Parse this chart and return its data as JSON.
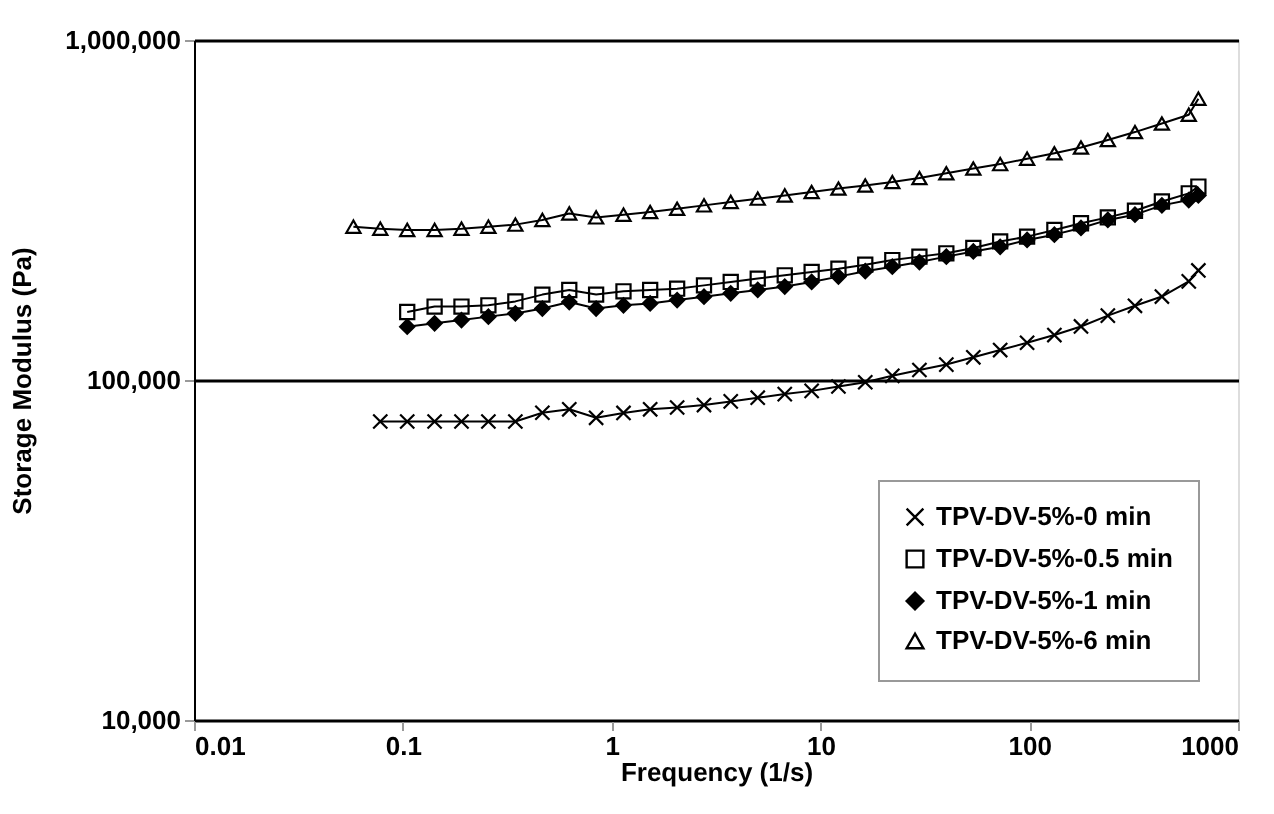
{
  "chart_data": {
    "type": "line",
    "xlabel": "Frequency (1/s)",
    "ylabel": "Storage Modulus (Pa)",
    "log": "xy",
    "xlim": [
      0.01,
      1000
    ],
    "xticks": [
      0.01,
      0.1,
      1,
      10,
      100,
      1000
    ],
    "ylim": [
      10000,
      1000000
    ],
    "yticks": [
      {
        "value": 10000,
        "label": "10,000"
      },
      {
        "value": 100000,
        "label": "100,000"
      },
      {
        "value": 1000000,
        "label": "1,000,000"
      }
    ],
    "grid": "y",
    "legend": "bottom right",
    "line_style": "solid",
    "series": [
      {
        "name": "TPV-DV-5%-0 min",
        "color": "#000000",
        "marker": "cross",
        "x": [
          0.078,
          0.105,
          0.142,
          0.191,
          0.257,
          0.346,
          0.466,
          0.627,
          0.843,
          1.14,
          1.53,
          2.06,
          2.77,
          3.72,
          5.01,
          6.75,
          9.08,
          12.2,
          16.4,
          22.1,
          29.8,
          40.1,
          54.0,
          72.6,
          97.7,
          132,
          177,
          238,
          321,
          432,
          581,
          646
        ],
        "values": [
          75500,
          75500,
          75500,
          75500,
          75500,
          75500,
          80100,
          82000,
          77400,
          80000,
          82000,
          83000,
          84400,
          86500,
          88700,
          90900,
          92900,
          95700,
          98500,
          102900,
          107000,
          111000,
          116600,
          122500,
          128700,
          135600,
          143700,
          154600,
          165300,
          176000,
          195000,
          210000
        ]
      },
      {
        "name": "TPV-DV-5%-0.5 min",
        "color": "#000000",
        "marker": "square",
        "x": [
          0.105,
          0.142,
          0.191,
          0.257,
          0.346,
          0.466,
          0.627,
          0.843,
          1.14,
          1.53,
          2.06,
          2.77,
          3.72,
          5.01,
          6.75,
          9.08,
          12.2,
          16.4,
          22.1,
          29.8,
          40.1,
          54.0,
          72.6,
          97.7,
          132,
          177,
          238,
          321,
          432,
          581,
          646
        ],
        "values": [
          158500,
          164400,
          164400,
          165800,
          170300,
          178300,
          184000,
          178300,
          182300,
          184000,
          185600,
          189800,
          194300,
          198700,
          203200,
          207800,
          212500,
          218400,
          225300,
          230600,
          235800,
          244500,
          255600,
          264000,
          276300,
          289000,
          300800,
          314700,
          335000,
          354000,
          370600
        ]
      },
      {
        "name": "TPV-DV-5%-1 min",
        "color": "#000000",
        "marker": "diamond",
        "x": [
          0.105,
          0.142,
          0.191,
          0.257,
          0.346,
          0.466,
          0.627,
          0.843,
          1.14,
          1.53,
          2.06,
          2.77,
          3.72,
          5.01,
          6.75,
          9.08,
          12.2,
          16.4,
          22.1,
          29.8,
          40.1,
          54.0,
          72.6,
          97.7,
          132,
          177,
          238,
          321,
          432,
          581,
          646
        ],
        "values": [
          143500,
          146800,
          150100,
          153600,
          157000,
          162200,
          169500,
          162200,
          165800,
          168000,
          171900,
          175800,
          179900,
          184000,
          188300,
          194300,
          201400,
          208900,
          215400,
          222300,
          230600,
          238800,
          246500,
          258100,
          267600,
          280000,
          295700,
          306400,
          326300,
          338300,
          349000
        ]
      },
      {
        "name": "TPV-DV-5%-6 min",
        "color": "#000000",
        "marker": "triangle",
        "x": [
          0.058,
          0.078,
          0.105,
          0.142,
          0.191,
          0.257,
          0.346,
          0.466,
          0.627,
          0.843,
          1.14,
          1.53,
          2.06,
          2.77,
          3.72,
          5.01,
          6.75,
          9.08,
          12.2,
          16.4,
          22.1,
          29.8,
          40.1,
          54.0,
          72.6,
          97.7,
          132,
          177,
          238,
          321,
          432,
          581,
          646
        ],
        "values": [
          282500,
          278700,
          276300,
          276300,
          278700,
          282500,
          286400,
          295700,
          309000,
          300800,
          306400,
          312000,
          319000,
          326300,
          334000,
          341500,
          349000,
          357300,
          365600,
          373300,
          382000,
          392600,
          405500,
          418800,
          431500,
          447700,
          464500,
          483000,
          508000,
          536000,
          568000,
          603000,
          672000
        ]
      }
    ]
  }
}
